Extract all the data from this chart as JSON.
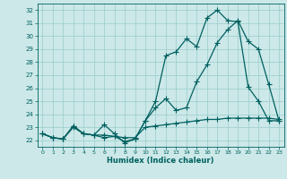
{
  "xlabel": "Humidex (Indice chaleur)",
  "bg_color": "#cce8e8",
  "line_color": "#006060",
  "grid_color": "#99cccc",
  "xlim": [
    -0.5,
    23.5
  ],
  "ylim": [
    21.5,
    32.5
  ],
  "yticks": [
    22,
    23,
    24,
    25,
    26,
    27,
    28,
    29,
    30,
    31,
    32
  ],
  "xticks": [
    0,
    1,
    2,
    3,
    4,
    5,
    6,
    7,
    8,
    9,
    10,
    11,
    12,
    13,
    14,
    15,
    16,
    17,
    18,
    19,
    20,
    21,
    22,
    23
  ],
  "line1_x": [
    0,
    1,
    2,
    3,
    4,
    5,
    6,
    7,
    8,
    9,
    10,
    11,
    12,
    13,
    14,
    15,
    16,
    17,
    18,
    19,
    20,
    21,
    22,
    23
  ],
  "line1_y": [
    22.5,
    22.2,
    22.1,
    23.1,
    22.5,
    22.4,
    22.2,
    22.3,
    21.9,
    22.1,
    23.5,
    25.0,
    28.5,
    28.8,
    29.8,
    29.2,
    31.4,
    32.0,
    31.2,
    31.1,
    26.1,
    25.0,
    23.5,
    23.5
  ],
  "line2_x": [
    0,
    1,
    2,
    3,
    4,
    5,
    6,
    7,
    8,
    9,
    10,
    11,
    12,
    13,
    14,
    15,
    16,
    17,
    18,
    19,
    20,
    21,
    22,
    23
  ],
  "line2_y": [
    22.5,
    22.2,
    22.1,
    23.0,
    22.5,
    22.4,
    23.2,
    22.5,
    21.8,
    22.1,
    23.5,
    24.5,
    25.2,
    24.3,
    24.5,
    26.5,
    27.8,
    29.5,
    30.5,
    31.2,
    29.6,
    29.0,
    26.3,
    23.5
  ],
  "line3_x": [
    0,
    1,
    2,
    3,
    4,
    5,
    6,
    7,
    8,
    9,
    10,
    11,
    12,
    13,
    14,
    15,
    16,
    17,
    18,
    19,
    20,
    21,
    22,
    23
  ],
  "line3_y": [
    22.5,
    22.2,
    22.1,
    23.1,
    22.5,
    22.4,
    22.4,
    22.3,
    22.2,
    22.2,
    23.0,
    23.1,
    23.2,
    23.3,
    23.4,
    23.5,
    23.6,
    23.6,
    23.7,
    23.7,
    23.7,
    23.7,
    23.7,
    23.6
  ]
}
